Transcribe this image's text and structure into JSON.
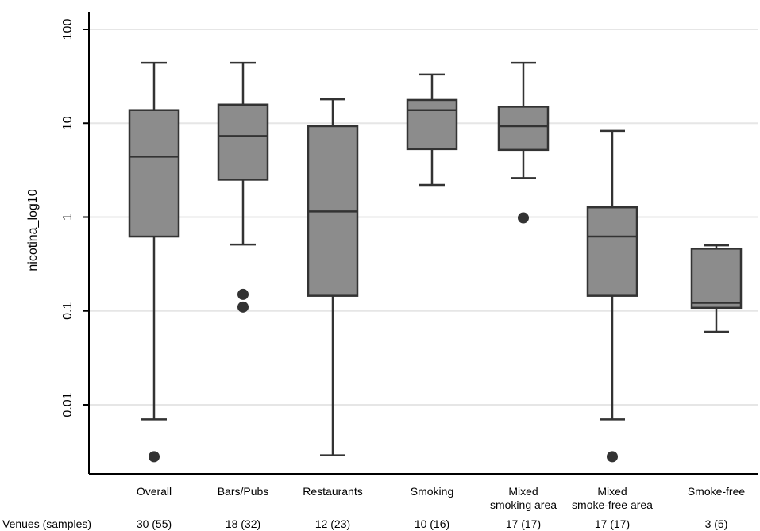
{
  "chart_data": {
    "type": "box",
    "ylabel": "nicotina_log10",
    "yscale": "log",
    "ylim": [
      0.0015,
      140
    ],
    "yticks": [
      100,
      10,
      1,
      0.1,
      0.01
    ],
    "ytick_labels": [
      "100",
      "10",
      "1",
      "0.1",
      "0.01"
    ],
    "grid": true,
    "row_label": "Venues (samples)",
    "categories": [
      {
        "label": [
          "Overall"
        ],
        "count": "30 (55)",
        "whisker_low": 0.007,
        "q1": 0.62,
        "median": 4.4,
        "q3": 13.8,
        "whisker_high": 44,
        "outliers": [
          0.0028
        ]
      },
      {
        "label": [
          "Bars/Pubs"
        ],
        "count": "18 (32)",
        "whisker_low": 0.51,
        "q1": 2.5,
        "median": 7.3,
        "q3": 15.8,
        "whisker_high": 44,
        "outliers": [
          0.15,
          0.11
        ]
      },
      {
        "label": [
          "Restaurants"
        ],
        "count": "12 (23)",
        "whisker_low": 0.0029,
        "q1": 0.145,
        "median": 1.15,
        "q3": 9.3,
        "whisker_high": 18,
        "outliers": []
      },
      {
        "label": [
          "Smoking"
        ],
        "count": "10 (16)",
        "whisker_low": 2.2,
        "q1": 5.3,
        "median": 13.8,
        "q3": 17.7,
        "whisker_high": 33,
        "outliers": []
      },
      {
        "label": [
          "Mixed",
          "smoking area"
        ],
        "count": "17 (17)",
        "whisker_low": 2.6,
        "q1": 5.2,
        "median": 9.3,
        "q3": 15,
        "whisker_high": 44,
        "outliers": [
          0.98
        ]
      },
      {
        "label": [
          "Mixed",
          "smoke-free area"
        ],
        "count": "17 (17)",
        "whisker_low": 0.007,
        "q1": 0.145,
        "median": 0.62,
        "q3": 1.27,
        "whisker_high": 8.3,
        "outliers": [
          0.0028
        ]
      },
      {
        "label": [
          "Smoke-free"
        ],
        "count": "3 (5)",
        "whisker_low": 0.06,
        "q1": 0.108,
        "median": 0.122,
        "q3": 0.46,
        "whisker_high": 0.5,
        "outliers": []
      }
    ],
    "colors": {
      "box_fill": "#8c8c8c",
      "box_stroke": "#333333",
      "grid": "#e6e6e6",
      "outlier": "#333333"
    }
  }
}
